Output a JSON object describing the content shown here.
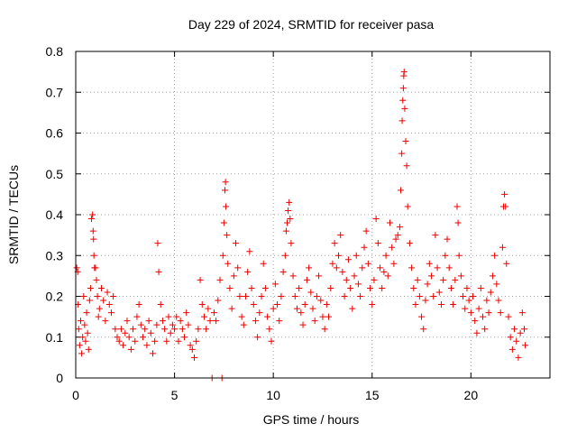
{
  "chart_data": {
    "type": "scatter",
    "title": "Day 229 of 2024, SRMTID for receiver pasa",
    "xlabel": "GPS time / hours",
    "ylabel": "SRMTID / TECUs",
    "xlim": [
      0,
      24
    ],
    "ylim": [
      0,
      0.8
    ],
    "x_ticks": [
      0,
      5,
      10,
      15,
      20
    ],
    "x_tick_labels": [
      "0",
      "5",
      "10",
      "15",
      "20"
    ],
    "y_ticks": [
      0,
      0.1,
      0.2,
      0.3,
      0.4,
      0.5,
      0.6,
      0.7,
      0.8
    ],
    "y_tick_labels": [
      "0",
      "0.1",
      "0.2",
      "0.3",
      "0.4",
      "0.5",
      "0.6",
      "0.7",
      "0.8"
    ],
    "grid": true,
    "marker": "plus",
    "color": "#ee0000",
    "series": [
      {
        "name": "SRMTID",
        "points": [
          [
            0.05,
            0.27
          ],
          [
            0.1,
            0.26
          ],
          [
            0.12,
            0.18
          ],
          [
            0.15,
            0.12
          ],
          [
            0.2,
            0.08
          ],
          [
            0.25,
            0.14
          ],
          [
            0.3,
            0.06
          ],
          [
            0.35,
            0.1
          ],
          [
            0.4,
            0.2
          ],
          [
            0.45,
            0.13
          ],
          [
            0.5,
            0.09
          ],
          [
            0.55,
            0.16
          ],
          [
            0.6,
            0.11
          ],
          [
            0.65,
            0.07
          ],
          [
            0.7,
            0.19
          ],
          [
            0.75,
            0.22
          ],
          [
            0.8,
            0.39
          ],
          [
            0.85,
            0.4
          ],
          [
            0.88,
            0.36
          ],
          [
            0.9,
            0.34
          ],
          [
            0.92,
            0.3
          ],
          [
            0.95,
            0.27
          ],
          [
            1.0,
            0.27
          ],
          [
            1.05,
            0.24
          ],
          [
            1.1,
            0.2
          ],
          [
            1.15,
            0.15
          ],
          [
            1.2,
            0.17
          ],
          [
            1.3,
            0.22
          ],
          [
            1.4,
            0.19
          ],
          [
            1.5,
            0.14
          ],
          [
            1.6,
            0.21
          ],
          [
            1.7,
            0.18
          ],
          [
            1.8,
            0.16
          ],
          [
            1.9,
            0.2
          ],
          [
            2.0,
            0.12
          ],
          [
            2.1,
            0.1
          ],
          [
            2.2,
            0.09
          ],
          [
            2.3,
            0.12
          ],
          [
            2.4,
            0.08
          ],
          [
            2.5,
            0.11
          ],
          [
            2.6,
            0.14
          ],
          [
            2.7,
            0.1
          ],
          [
            2.8,
            0.07
          ],
          [
            2.9,
            0.12
          ],
          [
            3.0,
            0.09
          ],
          [
            3.1,
            0.15
          ],
          [
            3.2,
            0.18
          ],
          [
            3.3,
            0.13
          ],
          [
            3.4,
            0.1
          ],
          [
            3.5,
            0.12
          ],
          [
            3.6,
            0.08
          ],
          [
            3.7,
            0.14
          ],
          [
            3.8,
            0.11
          ],
          [
            3.9,
            0.06
          ],
          [
            4.0,
            0.09
          ],
          [
            4.1,
            0.13
          ],
          [
            4.15,
            0.33
          ],
          [
            4.2,
            0.26
          ],
          [
            4.3,
            0.18
          ],
          [
            4.4,
            0.14
          ],
          [
            4.5,
            0.12
          ],
          [
            4.6,
            0.09
          ],
          [
            4.7,
            0.15
          ],
          [
            4.8,
            0.11
          ],
          [
            4.9,
            0.13
          ],
          [
            5.0,
            0.12
          ],
          [
            5.1,
            0.15
          ],
          [
            5.2,
            0.09
          ],
          [
            5.3,
            0.14
          ],
          [
            5.4,
            0.12
          ],
          [
            5.5,
            0.1
          ],
          [
            5.6,
            0.16
          ],
          [
            5.7,
            0.13
          ],
          [
            5.8,
            0.08
          ],
          [
            5.9,
            0.07
          ],
          [
            6.0,
            0.05
          ],
          [
            6.1,
            0.09
          ],
          [
            6.2,
            0.12
          ],
          [
            6.3,
            0.24
          ],
          [
            6.4,
            0.18
          ],
          [
            6.5,
            0.15
          ],
          [
            6.6,
            0.12
          ],
          [
            6.7,
            0.17
          ],
          [
            6.8,
            0.14
          ],
          [
            6.9,
            0.0
          ],
          [
            7.0,
            0.16
          ],
          [
            7.1,
            0.14
          ],
          [
            7.2,
            0.19
          ],
          [
            7.3,
            0.24
          ],
          [
            7.4,
            0.0
          ],
          [
            7.45,
            0.3
          ],
          [
            7.5,
            0.38
          ],
          [
            7.55,
            0.46
          ],
          [
            7.58,
            0.48
          ],
          [
            7.6,
            0.42
          ],
          [
            7.65,
            0.35
          ],
          [
            7.7,
            0.28
          ],
          [
            7.8,
            0.22
          ],
          [
            7.9,
            0.17
          ],
          [
            8.0,
            0.25
          ],
          [
            8.1,
            0.33
          ],
          [
            8.2,
            0.27
          ],
          [
            8.3,
            0.2
          ],
          [
            8.4,
            0.15
          ],
          [
            8.5,
            0.13
          ],
          [
            8.6,
            0.2
          ],
          [
            8.7,
            0.26
          ],
          [
            8.8,
            0.31
          ],
          [
            8.9,
            0.22
          ],
          [
            9.0,
            0.18
          ],
          [
            9.1,
            0.14
          ],
          [
            9.2,
            0.1
          ],
          [
            9.3,
            0.16
          ],
          [
            9.4,
            0.2
          ],
          [
            9.5,
            0.28
          ],
          [
            9.6,
            0.22
          ],
          [
            9.7,
            0.15
          ],
          [
            9.8,
            0.12
          ],
          [
            9.9,
            0.09
          ],
          [
            10.0,
            0.17
          ],
          [
            10.1,
            0.23
          ],
          [
            10.2,
            0.18
          ],
          [
            10.3,
            0.14
          ],
          [
            10.4,
            0.2
          ],
          [
            10.5,
            0.26
          ],
          [
            10.6,
            0.3
          ],
          [
            10.65,
            0.36
          ],
          [
            10.7,
            0.38
          ],
          [
            10.75,
            0.41
          ],
          [
            10.8,
            0.43
          ],
          [
            10.85,
            0.39
          ],
          [
            10.9,
            0.33
          ],
          [
            11.0,
            0.25
          ],
          [
            11.1,
            0.2
          ],
          [
            11.2,
            0.17
          ],
          [
            11.3,
            0.22
          ],
          [
            11.4,
            0.16
          ],
          [
            11.5,
            0.13
          ],
          [
            11.6,
            0.18
          ],
          [
            11.7,
            0.24
          ],
          [
            11.8,
            0.27
          ],
          [
            11.9,
            0.21
          ],
          [
            12.0,
            0.17
          ],
          [
            12.1,
            0.14
          ],
          [
            12.2,
            0.2
          ],
          [
            12.3,
            0.25
          ],
          [
            12.4,
            0.19
          ],
          [
            12.5,
            0.15
          ],
          [
            12.6,
            0.12
          ],
          [
            12.7,
            0.18
          ],
          [
            12.8,
            0.15
          ],
          [
            12.9,
            0.22
          ],
          [
            13.0,
            0.28
          ],
          [
            13.1,
            0.33
          ],
          [
            13.2,
            0.27
          ],
          [
            13.3,
            0.3
          ],
          [
            13.4,
            0.35
          ],
          [
            13.5,
            0.26
          ],
          [
            13.6,
            0.2
          ],
          [
            13.7,
            0.24
          ],
          [
            13.8,
            0.29
          ],
          [
            13.9,
            0.22
          ],
          [
            14.0,
            0.17
          ],
          [
            14.1,
            0.25
          ],
          [
            14.2,
            0.3
          ],
          [
            14.3,
            0.23
          ],
          [
            14.4,
            0.2
          ],
          [
            14.5,
            0.27
          ],
          [
            14.6,
            0.32
          ],
          [
            14.7,
            0.36
          ],
          [
            14.8,
            0.28
          ],
          [
            14.9,
            0.22
          ],
          [
            15.0,
            0.18
          ],
          [
            15.1,
            0.24
          ],
          [
            15.2,
            0.39
          ],
          [
            15.3,
            0.33
          ],
          [
            15.4,
            0.27
          ],
          [
            15.5,
            0.22
          ],
          [
            15.6,
            0.26
          ],
          [
            15.7,
            0.3
          ],
          [
            15.8,
            0.25
          ],
          [
            15.9,
            0.38
          ],
          [
            16.0,
            0.32
          ],
          [
            16.1,
            0.28
          ],
          [
            16.2,
            0.34
          ],
          [
            16.3,
            0.35
          ],
          [
            16.4,
            0.37
          ],
          [
            16.45,
            0.46
          ],
          [
            16.5,
            0.55
          ],
          [
            16.52,
            0.63
          ],
          [
            16.55,
            0.68
          ],
          [
            16.58,
            0.71
          ],
          [
            16.6,
            0.74
          ],
          [
            16.62,
            0.75
          ],
          [
            16.65,
            0.66
          ],
          [
            16.7,
            0.58
          ],
          [
            16.75,
            0.52
          ],
          [
            16.8,
            0.42
          ],
          [
            16.9,
            0.33
          ],
          [
            17.0,
            0.27
          ],
          [
            17.1,
            0.22
          ],
          [
            17.2,
            0.18
          ],
          [
            17.3,
            0.24
          ],
          [
            17.4,
            0.2
          ],
          [
            17.5,
            0.15
          ],
          [
            17.6,
            0.12
          ],
          [
            17.7,
            0.19
          ],
          [
            17.8,
            0.23
          ],
          [
            17.9,
            0.28
          ],
          [
            18.0,
            0.25
          ],
          [
            18.1,
            0.2
          ],
          [
            18.2,
            0.35
          ],
          [
            18.3,
            0.27
          ],
          [
            18.4,
            0.21
          ],
          [
            18.5,
            0.18
          ],
          [
            18.6,
            0.24
          ],
          [
            18.7,
            0.3
          ],
          [
            18.8,
            0.34
          ],
          [
            18.9,
            0.27
          ],
          [
            19.0,
            0.22
          ],
          [
            19.1,
            0.18
          ],
          [
            19.2,
            0.24
          ],
          [
            19.3,
            0.42
          ],
          [
            19.35,
            0.38
          ],
          [
            19.4,
            0.3
          ],
          [
            19.5,
            0.25
          ],
          [
            19.6,
            0.2
          ],
          [
            19.7,
            0.17
          ],
          [
            19.8,
            0.22
          ],
          [
            19.9,
            0.19
          ],
          [
            20.0,
            0.16
          ],
          [
            20.1,
            0.2
          ],
          [
            20.2,
            0.14
          ],
          [
            20.3,
            0.11
          ],
          [
            20.4,
            0.17
          ],
          [
            20.5,
            0.22
          ],
          [
            20.6,
            0.15
          ],
          [
            20.7,
            0.12
          ],
          [
            20.8,
            0.19
          ],
          [
            20.9,
            0.16
          ],
          [
            21.0,
            0.21
          ],
          [
            21.1,
            0.25
          ],
          [
            21.2,
            0.3
          ],
          [
            21.3,
            0.23
          ],
          [
            21.4,
            0.19
          ],
          [
            21.5,
            0.16
          ],
          [
            21.6,
            0.32
          ],
          [
            21.65,
            0.42
          ],
          [
            21.7,
            0.45
          ],
          [
            21.75,
            0.42
          ],
          [
            21.8,
            0.28
          ],
          [
            21.9,
            0.15
          ],
          [
            22.0,
            0.1
          ],
          [
            22.1,
            0.07
          ],
          [
            22.2,
            0.12
          ],
          [
            22.3,
            0.09
          ],
          [
            22.4,
            0.05
          ],
          [
            22.5,
            0.11
          ],
          [
            22.6,
            0.16
          ],
          [
            22.7,
            0.12
          ],
          [
            22.75,
            0.08
          ]
        ]
      }
    ]
  }
}
